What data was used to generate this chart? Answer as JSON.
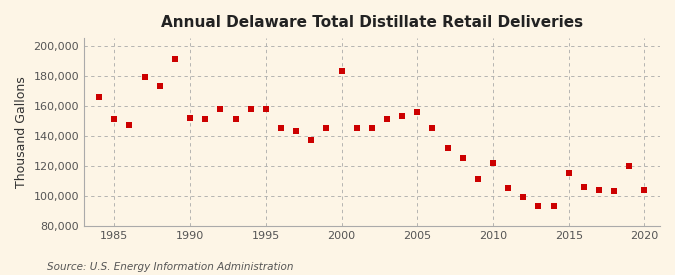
{
  "title": "Annual Delaware Total Distillate Retail Deliveries",
  "ylabel": "Thousand Gallons",
  "source": "Source: U.S. Energy Information Administration",
  "background_color": "#fdf5e6",
  "marker_color": "#cc0000",
  "years": [
    1984,
    1985,
    1986,
    1987,
    1988,
    1989,
    1990,
    1991,
    1992,
    1993,
    1994,
    1995,
    1996,
    1997,
    1998,
    1999,
    2000,
    2001,
    2002,
    2003,
    2004,
    2005,
    2006,
    2007,
    2008,
    2009,
    2010,
    2011,
    2012,
    2013,
    2014,
    2015,
    2016,
    2017,
    2018,
    2019,
    2020
  ],
  "values": [
    166000,
    151000,
    147000,
    179000,
    173000,
    191000,
    152000,
    151000,
    158000,
    151000,
    158000,
    158000,
    145000,
    143000,
    137000,
    145000,
    183000,
    145000,
    145000,
    151000,
    153000,
    156000,
    145000,
    132000,
    125000,
    111000,
    122000,
    105000,
    99000,
    93000,
    93000,
    115000,
    106000,
    104000,
    103000,
    120000,
    104000
  ],
  "xlim": [
    1983,
    2021
  ],
  "ylim": [
    80000,
    205000
  ],
  "yticks": [
    80000,
    100000,
    120000,
    140000,
    160000,
    180000,
    200000
  ],
  "xticks": [
    1985,
    1990,
    1995,
    2000,
    2005,
    2010,
    2015,
    2020
  ],
  "grid_color": "#aaaaaa",
  "title_fontsize": 11,
  "label_fontsize": 9,
  "tick_fontsize": 8,
  "source_fontsize": 7.5
}
